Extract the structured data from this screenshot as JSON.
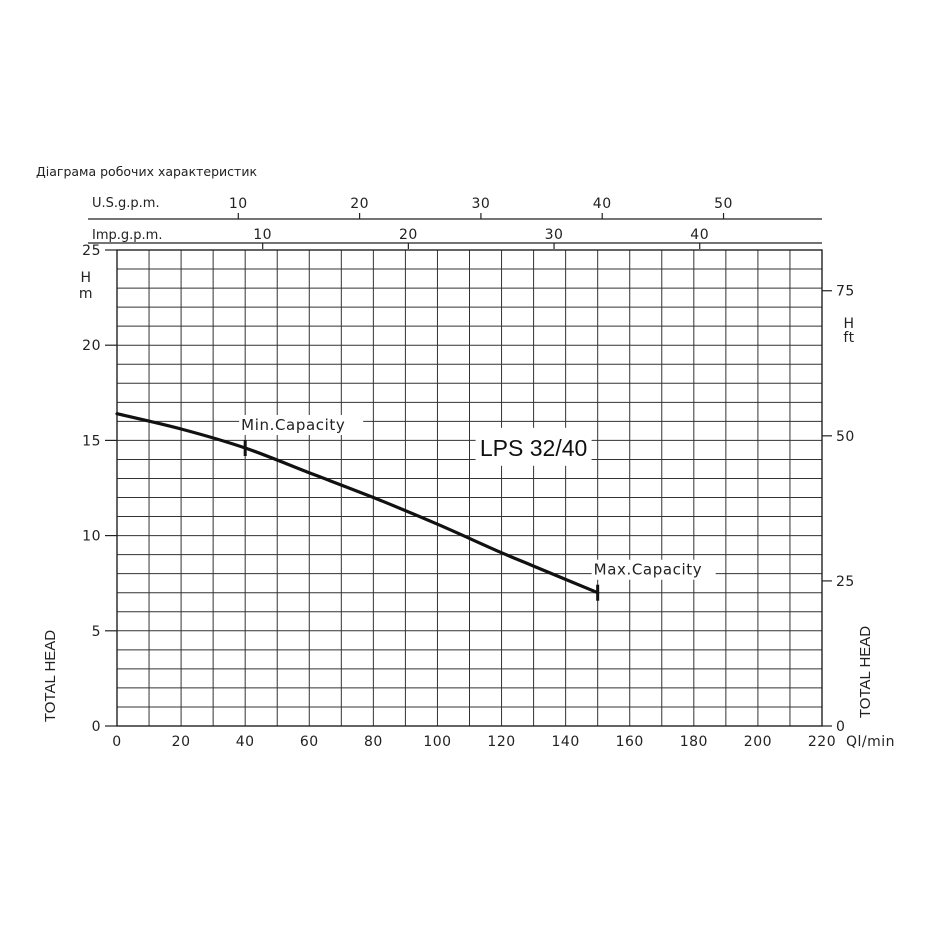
{
  "caption": "Діаграма робочих характеристик",
  "chart_data": {
    "type": "line",
    "model": "LPS 32/40",
    "x_unit": "Ql/min",
    "xlim": [
      0,
      220
    ],
    "x_ticks": [
      0,
      20,
      40,
      60,
      80,
      100,
      120,
      140,
      160,
      180,
      200,
      220
    ],
    "ylim": [
      0,
      25
    ],
    "y_ticks": [
      0,
      5,
      10,
      15,
      20,
      25
    ],
    "y_unit_left": [
      "H",
      "m"
    ],
    "y_unit_right": [
      "H",
      "ft"
    ],
    "y_ticks_right": [
      0,
      25,
      50,
      75
    ],
    "ylabel": "TOTAL HEAD",
    "usgpm": {
      "label": "U.S.g.p.m.",
      "ticks": [
        10,
        20,
        30,
        40,
        50
      ]
    },
    "impgpm": {
      "label": "Imp.g.p.m.",
      "ticks": [
        10,
        20,
        30,
        40
      ]
    },
    "series": [
      {
        "x": [
          0,
          20,
          40,
          60,
          80,
          100,
          120,
          130,
          150
        ],
        "y": [
          16.4,
          15.6,
          14.6,
          13.3,
          12.0,
          10.6,
          9.1,
          8.4,
          7.0
        ]
      }
    ],
    "annotations": [
      {
        "text": "Min.Capacity",
        "x": 40,
        "y": 14.6
      },
      {
        "text": "Max.Capacity",
        "x": 150,
        "y": 7.0
      }
    ],
    "grid": true
  }
}
